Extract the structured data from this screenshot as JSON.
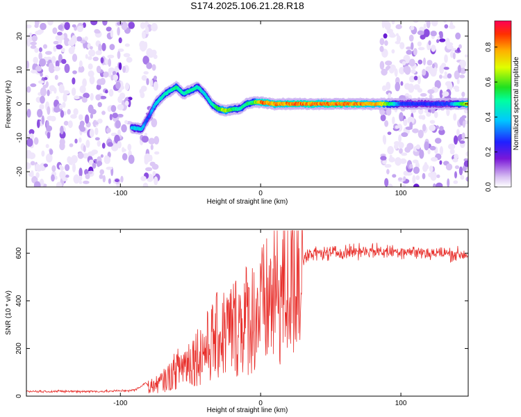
{
  "title": "S174.2025.106.21.28.R18",
  "chart_data": [
    {
      "type": "heatmap",
      "xlabel": "Height of straight line (km)",
      "ylabel": "Frequency (Hz)",
      "xlim": [
        -167,
        148
      ],
      "ylim": [
        -24.5,
        24.5
      ],
      "xticks": [
        -100,
        0,
        100
      ],
      "yticks": [
        -20,
        -10,
        0,
        10,
        20
      ],
      "colorbar": {
        "label": "Normalized spectral amplitude",
        "range": [
          0.0,
          0.95
        ],
        "ticks": [
          0.0,
          0.2,
          0.4,
          0.6,
          0.8
        ],
        "colormap": "rainbow (purple → blue → cyan → green → yellow → red)"
      },
      "signal_track": {
        "heights_km": [
          -92,
          -85,
          -80,
          -75,
          -68,
          -60,
          -55,
          -50,
          -45,
          -40,
          -35,
          -30,
          -25,
          -20,
          -15,
          -10,
          -5,
          0,
          10,
          20,
          40,
          60,
          85,
          100,
          120,
          135,
          148
        ],
        "frequencies_hz": [
          -7,
          -7.5,
          -4,
          0,
          3,
          5,
          3,
          4,
          5,
          3,
          0,
          -1.5,
          -2,
          -1.5,
          -1.5,
          0,
          0.5,
          0.5,
          0,
          0,
          0,
          0,
          0,
          0,
          0,
          0,
          0
        ],
        "amplitude": [
          0.45,
          0.45,
          0.3,
          0.45,
          0.5,
          0.55,
          0.5,
          0.55,
          0.5,
          0.45,
          0.5,
          0.6,
          0.75,
          0.6,
          0.5,
          0.55,
          0.6,
          0.9,
          0.85,
          0.9,
          0.9,
          0.9,
          0.85,
          0.3,
          0.3,
          0.3,
          0.8
        ]
      },
      "noise_regions_km": [
        [
          -167,
          -92
        ],
        [
          -85,
          -74
        ],
        [
          86,
          148
        ]
      ]
    },
    {
      "type": "line",
      "xlabel": "Height of straight line (km)",
      "ylabel": "SNR (10 * v/v)",
      "xlim": [
        -167,
        148
      ],
      "ylim": [
        0,
        700
      ],
      "xticks": [
        -100,
        0,
        100
      ],
      "yticks": [
        0,
        200,
        400,
        600
      ],
      "color": "#e8302c",
      "series": [
        {
          "x": [
            -167,
            -140,
            -110,
            -90,
            -85,
            -82,
            -80,
            -75,
            -70,
            -65,
            -60,
            -55,
            -50,
            -45,
            -40,
            -35,
            -30,
            -25,
            -20,
            -15,
            -10,
            -5,
            0,
            5,
            10,
            15,
            20,
            25,
            30,
            40,
            50,
            60,
            70,
            80,
            90,
            100,
            110,
            120,
            130,
            140,
            148
          ],
          "y": [
            20,
            20,
            20,
            25,
            40,
            60,
            40,
            45,
            60,
            80,
            110,
            130,
            150,
            170,
            190,
            220,
            250,
            260,
            280,
            300,
            320,
            330,
            350,
            380,
            410,
            430,
            470,
            540,
            580,
            600,
            600,
            605,
            610,
            610,
            605,
            610,
            605,
            600,
            600,
            595,
            595
          ]
        }
      ]
    }
  ]
}
